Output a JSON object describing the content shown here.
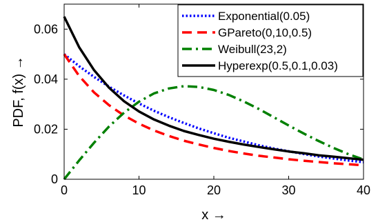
{
  "chart_data": {
    "type": "line",
    "title": "",
    "xlabel": "x →",
    "ylabel": "PDF, f(x) →",
    "xlim": [
      0,
      40
    ],
    "ylim": [
      0,
      0.07
    ],
    "xticks": [
      0,
      10,
      20,
      30,
      40
    ],
    "xtick_labels": [
      "0",
      "10",
      "20",
      "30",
      "40"
    ],
    "yticks": [
      0,
      0.02,
      0.04,
      0.06
    ],
    "ytick_labels": [
      "0",
      "0.02",
      "0.04",
      "0.06"
    ],
    "grid": false,
    "legend_position": "top-right",
    "series": [
      {
        "name": "Exponential(0.05)",
        "color": "#0000ff",
        "style": "dotted",
        "x": [
          0,
          2,
          4,
          6,
          8,
          10,
          12,
          14,
          16,
          18,
          20,
          22,
          24,
          26,
          28,
          30,
          32,
          34,
          36,
          38,
          40
        ],
        "y": [
          0.05,
          0.0452,
          0.0409,
          0.037,
          0.0335,
          0.0303,
          0.0274,
          0.0248,
          0.0225,
          0.0203,
          0.0184,
          0.0166,
          0.0151,
          0.0136,
          0.0123,
          0.0112,
          0.0101,
          0.0091,
          0.0083,
          0.0075,
          0.0068
        ]
      },
      {
        "name": "GPareto(0,10,0.5)",
        "color": "#ff0000",
        "style": "dashed",
        "x": [
          0,
          2,
          4,
          6,
          8,
          10,
          12,
          14,
          16,
          18,
          20,
          22,
          24,
          26,
          28,
          30,
          32,
          34,
          36,
          38,
          40
        ],
        "y": [
          0.05,
          0.0413,
          0.0347,
          0.0296,
          0.0255,
          0.0222,
          0.0195,
          0.0173,
          0.0154,
          0.0139,
          0.0125,
          0.0113,
          0.0103,
          0.0094,
          0.0087,
          0.008,
          0.0074,
          0.0069,
          0.0064,
          0.006,
          0.0056
        ]
      },
      {
        "name": "Weibull(23,2)",
        "color": "#008000",
        "style": "dashdot",
        "x": [
          0,
          2,
          4,
          6,
          8,
          10,
          12,
          14,
          16,
          18,
          20,
          22,
          24,
          26,
          28,
          30,
          32,
          34,
          36,
          38,
          40
        ],
        "y": [
          0,
          0.0075,
          0.0146,
          0.0211,
          0.0266,
          0.031,
          0.0343,
          0.0363,
          0.0372,
          0.0369,
          0.0357,
          0.0337,
          0.0311,
          0.0281,
          0.0248,
          0.0215,
          0.0183,
          0.0153,
          0.0125,
          0.01,
          0.0079
        ]
      },
      {
        "name": "Hyperexp(0.5,0.1,0.03)",
        "color": "#000000",
        "style": "solid",
        "x": [
          0,
          2,
          4,
          6,
          8,
          10,
          12,
          14,
          16,
          18,
          20,
          22,
          24,
          26,
          28,
          30,
          32,
          34,
          36,
          38,
          40
        ],
        "y": [
          0.065,
          0.0528,
          0.0436,
          0.0366,
          0.0312,
          0.0271,
          0.0239,
          0.0214,
          0.0193,
          0.0177,
          0.0162,
          0.015,
          0.0139,
          0.0129,
          0.012,
          0.0111,
          0.0104,
          0.0096,
          0.009,
          0.0084,
          0.0078
        ]
      }
    ]
  }
}
